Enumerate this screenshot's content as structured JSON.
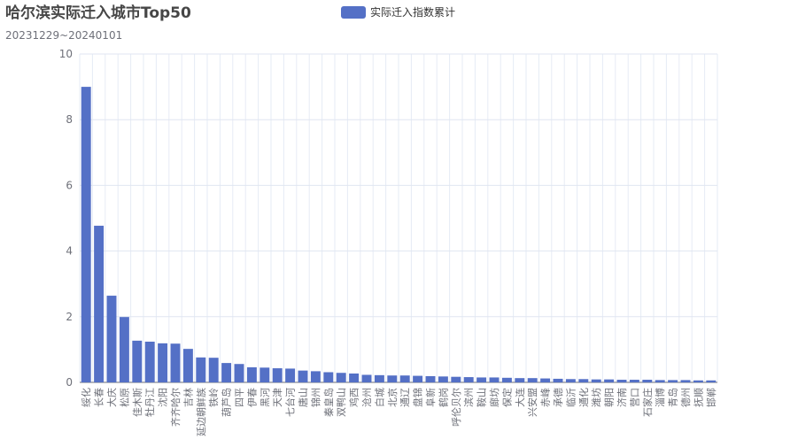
{
  "chart_data": {
    "type": "bar",
    "title": "哈尔滨实际迁入城市Top50",
    "subtitle": "20231229~20240101",
    "categories": [
      "绥化",
      "长春",
      "大庆",
      "松原",
      "佳木斯",
      "牡丹江",
      "沈阳",
      "齐齐哈尔",
      "吉林",
      "延边朝鲜族",
      "铁岭",
      "葫芦岛",
      "四平",
      "伊春",
      "黑河",
      "天津",
      "七台河",
      "唐山",
      "锦州",
      "秦皇岛",
      "双鸭山",
      "鸡西",
      "沧州",
      "白城",
      "北京",
      "通辽",
      "盘锦",
      "阜新",
      "鹤岗",
      "呼伦贝尔",
      "滨州",
      "鞍山",
      "廊坊",
      "保定",
      "大连",
      "兴安盟",
      "赤峰",
      "承德",
      "临沂",
      "通化",
      "潍坊",
      "朝阳",
      "济南",
      "营口",
      "石家庄",
      "淄博",
      "青岛",
      "德州",
      "抚顺",
      "邯郸"
    ],
    "series": [
      {
        "name": "实际迁入指数累计",
        "color": "#5470c6",
        "values": [
          9.0,
          4.77,
          2.64,
          1.99,
          1.27,
          1.24,
          1.19,
          1.18,
          1.02,
          0.76,
          0.75,
          0.59,
          0.56,
          0.46,
          0.45,
          0.43,
          0.42,
          0.36,
          0.34,
          0.31,
          0.29,
          0.27,
          0.23,
          0.22,
          0.21,
          0.21,
          0.2,
          0.19,
          0.18,
          0.17,
          0.16,
          0.15,
          0.15,
          0.14,
          0.13,
          0.13,
          0.12,
          0.11,
          0.1,
          0.1,
          0.09,
          0.09,
          0.08,
          0.08,
          0.08,
          0.07,
          0.07,
          0.07,
          0.06,
          0.06
        ]
      }
    ],
    "ylim": [
      0,
      10
    ],
    "yticks": [
      0,
      2,
      4,
      6,
      8,
      10
    ],
    "grid": true
  }
}
